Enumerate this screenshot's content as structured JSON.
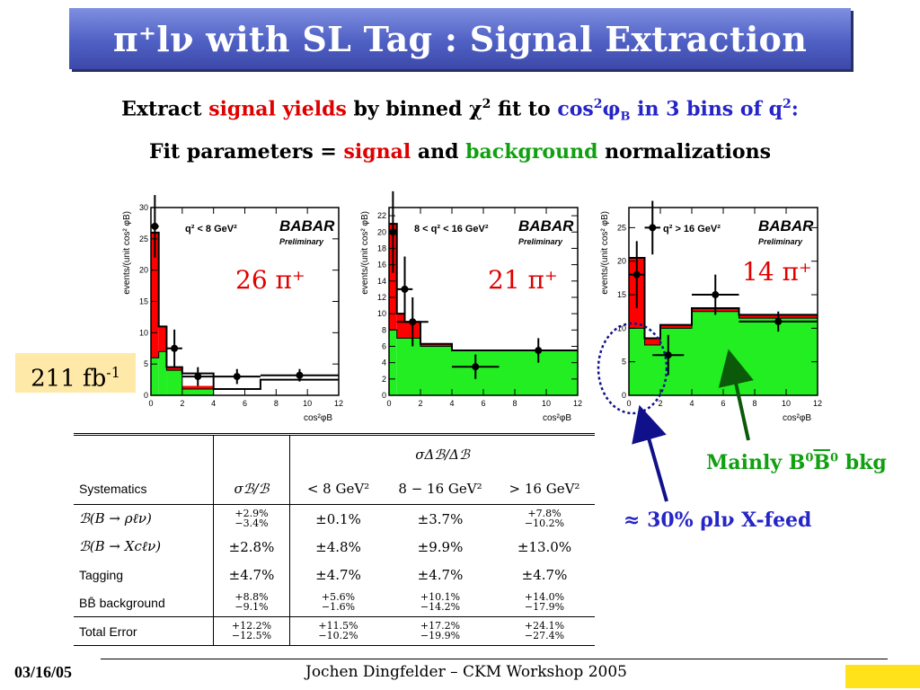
{
  "slide": {
    "title": "π⁺lν with SL Tag :  Signal Extraction",
    "line1": {
      "a": "Extract ",
      "b": "signal yields",
      "c": " by binned χ",
      "csup": "2",
      "d": " fit to ",
      "e": "cos",
      "esup": "2",
      "f": "φ",
      "fsub": "B",
      "g": " in 3 bins of q",
      "gsup": "2",
      "h": ":"
    },
    "line2": {
      "a": "Fit parameters = ",
      "b": "signal",
      "c": " and ",
      "d": "background",
      "e": " normalizations"
    },
    "lumi": {
      "value": "211 fb",
      "sup": "-1"
    },
    "xfeed_note": "≈ 30% ρlν X-feed",
    "bkg_note": {
      "a": "Mainly B",
      "asup": "0",
      "b": "B",
      "bsup": "0",
      "c": " bkg"
    },
    "footer": {
      "date": "03/16/05",
      "author": "Jochen Dingfelder –  CKM Workshop 2005"
    }
  },
  "panels": [
    {
      "yield_label": "26 π⁺",
      "q2_label": "q² < 8 GeV²",
      "logo": "BABAR",
      "prelim": "Preliminary",
      "ylabel": "events/(unit cos² φB)",
      "xlabel": "cos²φB"
    },
    {
      "yield_label": "21 π⁺",
      "q2_label": "8 < q² < 16 GeV²",
      "logo": "BABAR",
      "prelim": "Preliminary",
      "ylabel": "events/(unit cos² φB)",
      "xlabel": "cos²φB"
    },
    {
      "yield_label": "14 π⁺",
      "q2_label": "q² > 16 GeV²",
      "logo": "BABAR",
      "prelim": "Preliminary",
      "ylabel": "events/(unit cos² φB)",
      "xlabel": "cos²φB"
    }
  ],
  "chart_data": [
    {
      "type": "bar",
      "title": "q² < 8 GeV²",
      "xlabel": "cos²φB",
      "ylabel": "events/(unit cos² φB)",
      "xlim": [
        0,
        12
      ],
      "ylim": [
        0,
        30
      ],
      "xticks": [
        0,
        2,
        4,
        6,
        8,
        10,
        12
      ],
      "yticks": [
        0,
        5,
        10,
        15,
        20,
        25,
        30
      ],
      "bins": [
        [
          0,
          0.5
        ],
        [
          0.5,
          1
        ],
        [
          1,
          2
        ],
        [
          2,
          4
        ],
        [
          4,
          7
        ],
        [
          7,
          12
        ]
      ],
      "series": [
        {
          "name": "background",
          "values": [
            6,
            7,
            4,
            1,
            0,
            0
          ]
        },
        {
          "name": "signal",
          "values": [
            20,
            4,
            0.5,
            0.5,
            0,
            0
          ]
        },
        {
          "name": "total",
          "values": [
            26,
            11,
            4.5,
            3.5,
            1,
            2.5
          ]
        }
      ],
      "points": [
        {
          "x": 0.25,
          "y": 27,
          "xerr": 0.25,
          "yerr": 5
        },
        {
          "x": 1.5,
          "y": 7.5,
          "xerr": 0.5,
          "yerr": 3
        },
        {
          "x": 3,
          "y": 3,
          "xerr": 1,
          "yerr": 1.5
        },
        {
          "x": 5.5,
          "y": 3,
          "xerr": 1.5,
          "yerr": 1.2
        },
        {
          "x": 9.5,
          "y": 3.2,
          "xerr": 2.5,
          "yerr": 1
        }
      ]
    },
    {
      "type": "bar",
      "title": "8 < q² < 16 GeV²",
      "xlabel": "cos²φB",
      "ylabel": "events/(unit cos² φB)",
      "xlim": [
        0,
        12
      ],
      "ylim": [
        0,
        23
      ],
      "xticks": [
        0,
        2,
        4,
        6,
        8,
        10,
        12
      ],
      "yticks": [
        0,
        2,
        4,
        6,
        8,
        10,
        12,
        14,
        16,
        18,
        20,
        22
      ],
      "bins": [
        [
          0,
          0.5
        ],
        [
          0.5,
          1
        ],
        [
          1,
          2
        ],
        [
          2,
          4
        ],
        [
          4,
          7
        ],
        [
          7,
          12
        ]
      ],
      "series": [
        {
          "name": "background",
          "values": [
            8,
            7,
            7,
            6,
            5.5,
            5.5
          ]
        },
        {
          "name": "signal",
          "values": [
            13,
            3,
            2,
            0.3,
            0,
            0
          ]
        },
        {
          "name": "total",
          "values": [
            21,
            10,
            9,
            6.3,
            5.5,
            5.5
          ]
        }
      ],
      "points": [
        {
          "x": 0.25,
          "y": 20,
          "xerr": 0.25,
          "yerr": 5
        },
        {
          "x": 1,
          "y": 13,
          "xerr": 0.5,
          "yerr": 4
        },
        {
          "x": 1.5,
          "y": 9,
          "xerr": 1,
          "yerr": 3
        },
        {
          "x": 5.5,
          "y": 3.5,
          "xerr": 1.5,
          "yerr": 1.5
        },
        {
          "x": 9.5,
          "y": 5.5,
          "xerr": 2.5,
          "yerr": 1.5
        }
      ]
    },
    {
      "type": "bar",
      "title": "q² > 16 GeV²",
      "xlabel": "cos²φB",
      "ylabel": "events/(unit cos² φB)",
      "xlim": [
        0,
        12
      ],
      "ylim": [
        0,
        28
      ],
      "xticks": [
        0,
        2,
        4,
        6,
        8,
        10,
        12
      ],
      "yticks": [
        0,
        5,
        10,
        15,
        20,
        25
      ],
      "bins": [
        [
          0,
          1
        ],
        [
          1,
          2
        ],
        [
          2,
          4
        ],
        [
          4,
          7
        ],
        [
          7,
          12
        ]
      ],
      "series": [
        {
          "name": "background",
          "values": [
            10,
            7.5,
            10,
            12.5,
            11.5
          ]
        },
        {
          "name": "signal",
          "values": [
            10.5,
            1,
            0.5,
            0.5,
            0.5
          ]
        },
        {
          "name": "total",
          "values": [
            20.5,
            8.5,
            10.5,
            13,
            12
          ]
        }
      ],
      "points": [
        {
          "x": 0.5,
          "y": 18,
          "xerr": 0.5,
          "yerr": 5
        },
        {
          "x": 1.5,
          "y": 25,
          "xerr": 0.5,
          "yerr": 4
        },
        {
          "x": 2.5,
          "y": 6,
          "xerr": 1,
          "yerr": 3
        },
        {
          "x": 5.5,
          "y": 15,
          "xerr": 1.5,
          "yerr": 3
        },
        {
          "x": 9.5,
          "y": 11,
          "xerr": 2.5,
          "yerr": 1.5
        }
      ]
    },
    {
      "type": "table",
      "header_top": "σΔℬ/Δℬ",
      "columns": [
        "Systematics",
        "σℬ/ℬ",
        "< 8 GeV²",
        "8 − 16 GeV²",
        "> 16 GeV²"
      ],
      "rows": [
        {
          "label": "ℬ(B → ρℓν)",
          "cells": [
            {
              "up": "+2.9%",
              "dn": "−3.4%"
            },
            {
              "v": "±0.1%"
            },
            {
              "v": "±3.7%"
            },
            {
              "up": "+7.8%",
              "dn": "−10.2%"
            }
          ]
        },
        {
          "label": "ℬ(B → Xcℓν)",
          "cells": [
            {
              "v": "±2.8%"
            },
            {
              "v": "±4.8%"
            },
            {
              "v": "±9.9%"
            },
            {
              "v": "±13.0%"
            }
          ]
        },
        {
          "label": "Tagging",
          "cells": [
            {
              "v": "±4.7%"
            },
            {
              "v": "±4.7%"
            },
            {
              "v": "±4.7%"
            },
            {
              "v": "±4.7%"
            }
          ]
        },
        {
          "label": "BB̄ background",
          "cells": [
            {
              "up": "+8.8%",
              "dn": "−9.1%"
            },
            {
              "up": "+5.6%",
              "dn": "−1.6%"
            },
            {
              "up": "+10.1%",
              "dn": "−14.2%"
            },
            {
              "up": "+14.0%",
              "dn": "−17.9%"
            }
          ]
        },
        {
          "label": "Total Error",
          "cells": [
            {
              "up": "+12.2%",
              "dn": "−12.5%"
            },
            {
              "up": "+11.5%",
              "dn": "−10.2%"
            },
            {
              "up": "+17.2%",
              "dn": "−19.9%"
            },
            {
              "up": "+24.1%",
              "dn": "−27.4%"
            }
          ]
        }
      ]
    }
  ],
  "colors": {
    "signal": "#ff0000",
    "background": "#22ee22",
    "title_bar": "#4f60c4",
    "lumi_bg": "#ffe9a8",
    "blue_text": "#2525c8",
    "green_text": "#10a010",
    "red_text": "#e00000",
    "arrow_blue": "#10108a",
    "arrow_green": "#0a5a0a"
  }
}
